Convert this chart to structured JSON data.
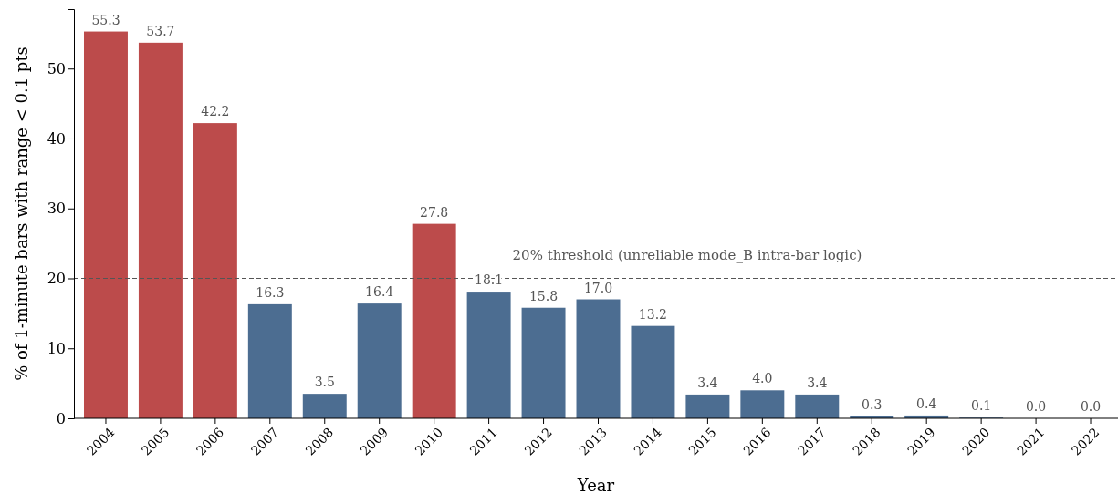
{
  "chart_data": {
    "type": "bar",
    "xlabel": "Year",
    "ylabel": "% of 1-minute bars with range < 0.1 pts",
    "categories": [
      "2004",
      "2005",
      "2006",
      "2007",
      "2008",
      "2009",
      "2010",
      "2011",
      "2012",
      "2013",
      "2014",
      "2015",
      "2016",
      "2017",
      "2018",
      "2019",
      "2020",
      "2021",
      "2022"
    ],
    "values": [
      55.3,
      53.7,
      42.2,
      16.3,
      3.5,
      16.4,
      27.8,
      18.1,
      15.8,
      17.0,
      13.2,
      3.4,
      4.0,
      3.4,
      0.3,
      0.4,
      0.1,
      0.0,
      0.0
    ],
    "colors": [
      "#bc4b4b",
      "#bc4b4b",
      "#bc4b4b",
      "#4c6d91",
      "#4c6d91",
      "#4c6d91",
      "#bc4b4b",
      "#4c6d91",
      "#4c6d91",
      "#4c6d91",
      "#4c6d91",
      "#4c6d91",
      "#4c6d91",
      "#4c6d91",
      "#4c6d91",
      "#4c6d91",
      "#4c6d91",
      "#4c6d91",
      "#4c6d91"
    ],
    "value_labels": [
      "55.3",
      "53.7",
      "42.2",
      "16.3",
      "3.5",
      "16.4",
      "27.8",
      "18.1",
      "15.8",
      "17.0",
      "13.2",
      "3.4",
      "4.0",
      "3.4",
      "0.3",
      "0.4",
      "0.1",
      "0.0",
      "0.0"
    ],
    "ylim": [
      0,
      58.5
    ],
    "yticks": [
      0,
      10,
      20,
      30,
      40,
      50
    ],
    "grid": false,
    "ref_lines": [
      {
        "axis": "y",
        "value": 20,
        "label": "20% threshold (unreliable mode_B intra-bar logic)",
        "color": "#555555",
        "line_style": "dashed"
      }
    ]
  }
}
